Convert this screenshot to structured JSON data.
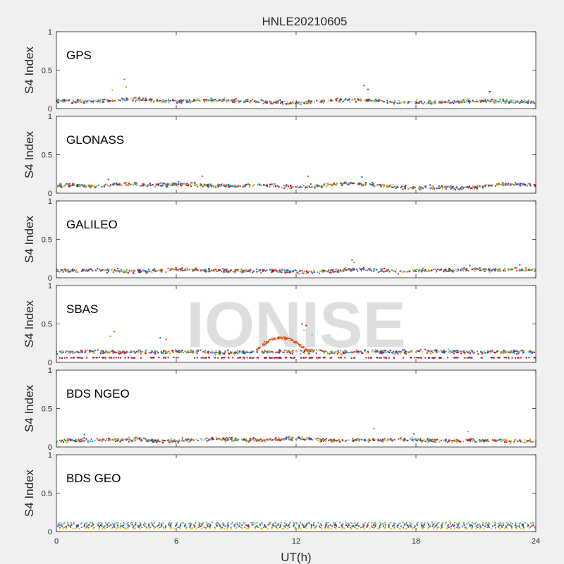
{
  "figure": {
    "title": "HNLE20210605",
    "xlabel": "UT(h)",
    "ylabel": "S4 Index",
    "watermark": "IONISE",
    "xlim": [
      0,
      24
    ],
    "xticks": [
      "0",
      "6",
      "12",
      "18",
      "24"
    ],
    "xtick_values": [
      0,
      6,
      12,
      18,
      24
    ],
    "ylim": [
      0,
      1
    ],
    "yticks": [
      "0",
      "0.5",
      "1"
    ],
    "ytick_values": [
      0,
      0.5,
      1
    ],
    "series_colors": [
      "#0072BD",
      "#D95319",
      "#EDB120",
      "#7E2F8E",
      "#77AC30",
      "#4DBEEE",
      "#A2142F"
    ]
  },
  "chart_data": [
    {
      "type": "scatter",
      "panel_label": "GPS",
      "xlim": [
        0,
        24
      ],
      "ylim": [
        0,
        1
      ],
      "ylabel": "S4 Index",
      "baseline_s4": [
        0.1,
        0.1,
        0.09,
        0.11,
        0.12,
        0.1,
        0.09,
        0.1,
        0.11,
        0.1,
        0.09,
        0.08,
        0.07,
        0.09,
        0.11,
        0.11,
        0.1,
        0.08,
        0.09,
        0.08,
        0.09,
        0.1,
        0.1,
        0.09,
        0.08
      ],
      "spikes": [
        {
          "x": 3.4,
          "y": 0.38
        },
        {
          "x": 3.5,
          "y": 0.28
        },
        {
          "x": 15.4,
          "y": 0.3
        },
        {
          "x": 15.6,
          "y": 0.25
        },
        {
          "x": 21.7,
          "y": 0.22
        },
        {
          "x": 2.8,
          "y": 0.24
        }
      ]
    },
    {
      "type": "scatter",
      "panel_label": "GLONASS",
      "xlim": [
        0,
        24
      ],
      "ylim": [
        0,
        1
      ],
      "ylabel": "S4 Index",
      "baseline_s4": [
        0.1,
        0.1,
        0.09,
        0.12,
        0.11,
        0.1,
        0.12,
        0.11,
        0.1,
        0.09,
        0.11,
        0.1,
        0.08,
        0.09,
        0.12,
        0.13,
        0.11,
        0.08,
        0.07,
        0.08,
        0.07,
        0.08,
        0.11,
        0.12,
        0.1
      ],
      "spikes": [
        {
          "x": 7.3,
          "y": 0.22
        },
        {
          "x": 12.6,
          "y": 0.22
        },
        {
          "x": 15.3,
          "y": 0.21
        },
        {
          "x": 2.6,
          "y": 0.18
        }
      ]
    },
    {
      "type": "scatter",
      "panel_label": "GALILEO",
      "xlim": [
        0,
        24
      ],
      "ylim": [
        0,
        1
      ],
      "ylabel": "S4 Index",
      "baseline_s4": [
        0.1,
        0.09,
        0.1,
        0.09,
        0.08,
        0.09,
        0.11,
        0.1,
        0.1,
        0.09,
        0.09,
        0.09,
        0.07,
        0.08,
        0.09,
        0.11,
        0.1,
        0.08,
        0.09,
        0.1,
        0.1,
        0.11,
        0.1,
        0.11,
        0.1
      ],
      "spikes": [
        {
          "x": 14.8,
          "y": 0.23
        },
        {
          "x": 14.9,
          "y": 0.2
        },
        {
          "x": 20.7,
          "y": 0.16
        },
        {
          "x": 23.2,
          "y": 0.17
        }
      ]
    },
    {
      "type": "scatter",
      "panel_label": "SBAS",
      "xlim": [
        0,
        24
      ],
      "ylim": [
        0,
        1
      ],
      "ylabel": "S4 Index",
      "baseline_s4": [
        0.13,
        0.14,
        0.14,
        0.13,
        0.14,
        0.13,
        0.14,
        0.14,
        0.13,
        0.13,
        0.14,
        0.14,
        0.14,
        0.14,
        0.13,
        0.14,
        0.14,
        0.13,
        0.14,
        0.14,
        0.14,
        0.13,
        0.14,
        0.14,
        0.14
      ],
      "floor_s4": 0.06,
      "enhancement": {
        "x_start": 10.0,
        "x_end": 12.8,
        "peak_s4": 0.32
      },
      "spikes": [
        {
          "x": 2.9,
          "y": 0.4
        },
        {
          "x": 2.7,
          "y": 0.34
        },
        {
          "x": 5.2,
          "y": 0.32
        },
        {
          "x": 12.3,
          "y": 0.5
        },
        {
          "x": 12.5,
          "y": 0.48
        },
        {
          "x": 12.4,
          "y": 0.42
        },
        {
          "x": 12.8,
          "y": 0.36
        },
        {
          "x": 5.5,
          "y": 0.3
        }
      ]
    },
    {
      "type": "scatter",
      "panel_label": "BDS NGEO",
      "xlim": [
        0,
        24
      ],
      "ylim": [
        0,
        1
      ],
      "ylabel": "S4 Index",
      "baseline_s4": [
        0.08,
        0.08,
        0.1,
        0.09,
        0.1,
        0.08,
        0.08,
        0.09,
        0.1,
        0.1,
        0.09,
        0.1,
        0.11,
        0.1,
        0.08,
        0.09,
        0.09,
        0.1,
        0.09,
        0.08,
        0.08,
        0.09,
        0.08,
        0.08,
        0.07
      ],
      "spikes": [
        {
          "x": 15.9,
          "y": 0.24
        },
        {
          "x": 20.6,
          "y": 0.2
        },
        {
          "x": 1.4,
          "y": 0.16
        },
        {
          "x": 17.9,
          "y": 0.17
        }
      ]
    },
    {
      "type": "scatter",
      "panel_label": "BDS GEO",
      "xlim": [
        0,
        24
      ],
      "ylim": [
        0,
        1
      ],
      "ylabel": "S4 Index",
      "bands_s4": [
        0.115,
        0.1,
        0.085,
        0.07,
        0.055,
        0.04
      ]
    }
  ]
}
